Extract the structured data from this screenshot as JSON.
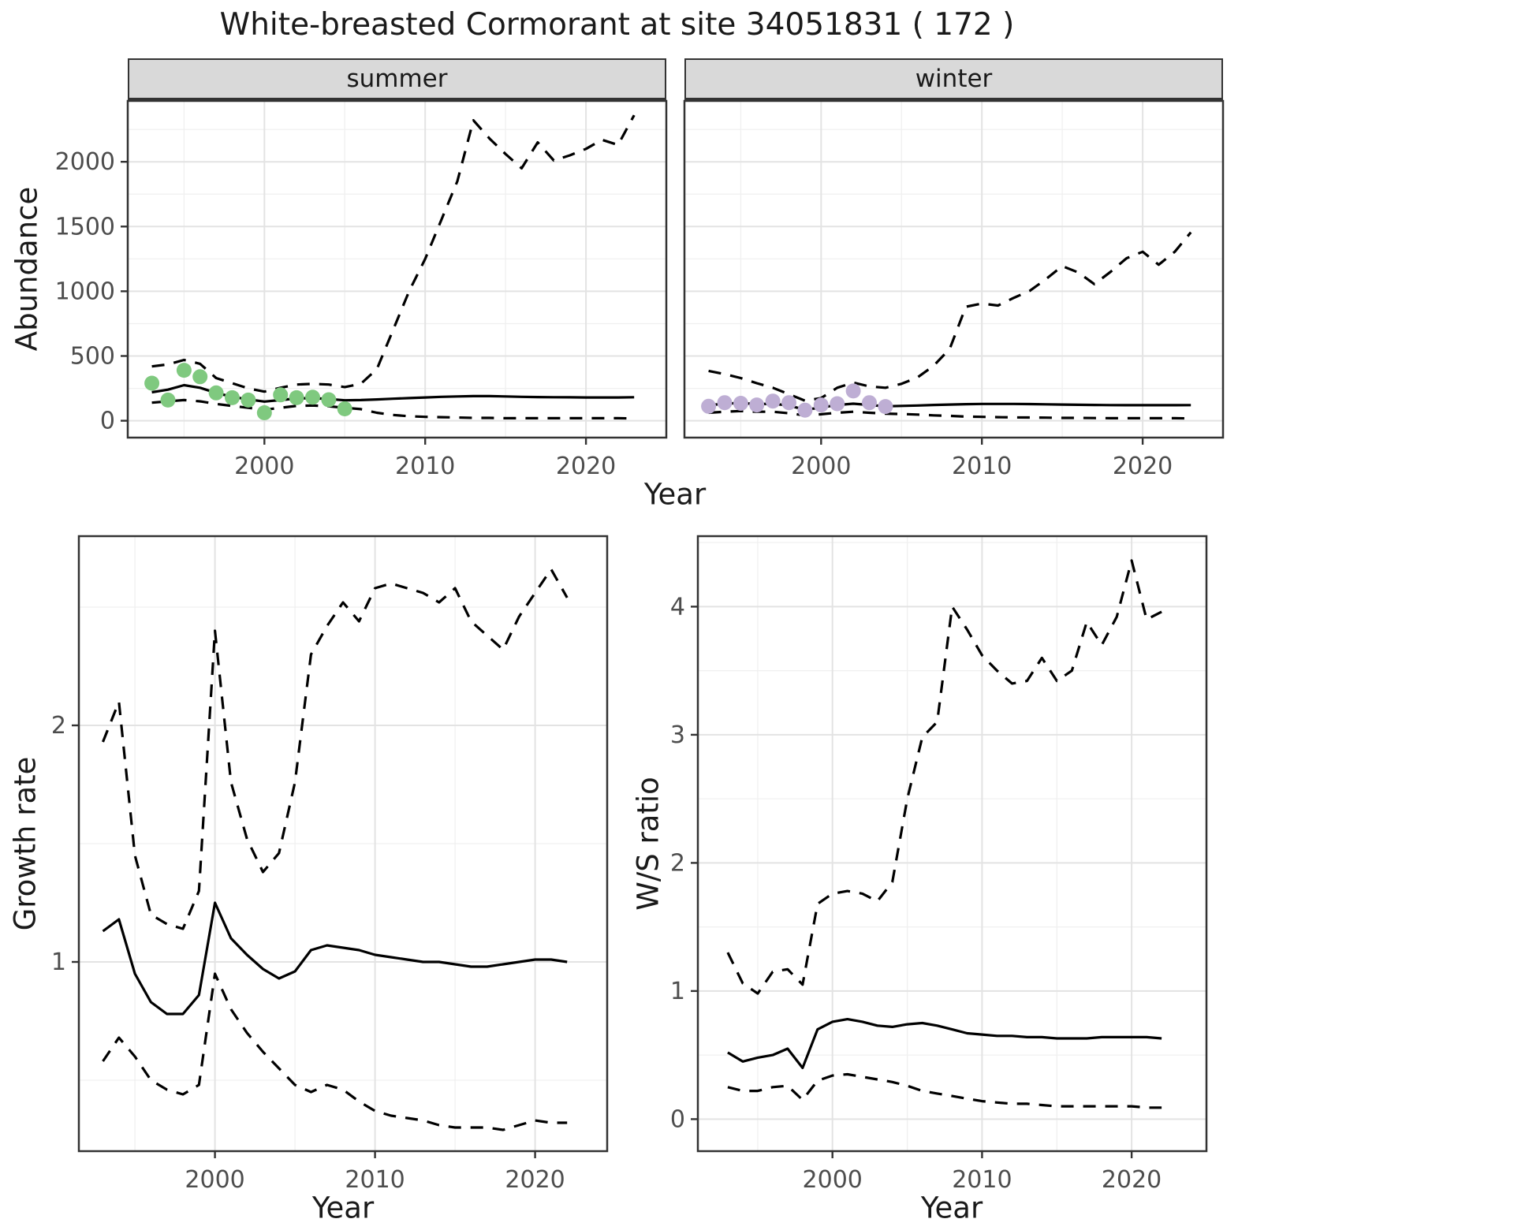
{
  "title": "White-breasted Cormorant at site 34051831 ( 172 )",
  "facets": {
    "summer": "summer",
    "winter": "winter"
  },
  "axis_labels": {
    "abundance": "Abundance",
    "year_top": "Year",
    "growth_rate": "Growth rate",
    "year_bottom_left": "Year",
    "ws_ratio": "W/S ratio",
    "year_bottom_right": "Year"
  },
  "colors": {
    "summer_points": "#7FC97F",
    "winter_points": "#BEAED4",
    "line": "#000000",
    "grid_major": "#E3E3E3",
    "grid_minor": "#F0F0F0",
    "panel_border": "#333333",
    "strip_bg": "#D9D9D9",
    "tick_text": "#4D4D4D"
  },
  "chart_data": [
    {
      "id": "abundance-summer",
      "type": "line",
      "facet_label": "summer",
      "xlabel": "Year",
      "ylabel": "Abundance",
      "xlim": [
        1991.5,
        2025
      ],
      "ylim": [
        -130,
        2470
      ],
      "xticks": [
        2000,
        2010,
        2020
      ],
      "yticks": [
        0,
        500,
        1000,
        1500,
        2000
      ],
      "grid": true,
      "x": [
        1993,
        1994,
        1995,
        1996,
        1997,
        1998,
        1999,
        2000,
        2001,
        2002,
        2003,
        2004,
        2005,
        2006,
        2007,
        2008,
        2009,
        2010,
        2011,
        2012,
        2013,
        2014,
        2015,
        2016,
        2017,
        2018,
        2019,
        2020,
        2021,
        2022,
        2023
      ],
      "series": [
        {
          "name": "median",
          "style": "solid",
          "values": [
            220,
            240,
            275,
            255,
            215,
            185,
            165,
            148,
            160,
            172,
            175,
            168,
            158,
            160,
            165,
            170,
            175,
            180,
            185,
            188,
            190,
            190,
            188,
            185,
            183,
            182,
            181,
            180,
            180,
            180,
            182
          ]
        },
        {
          "name": "upper_ci",
          "style": "dashed",
          "values": [
            420,
            435,
            470,
            440,
            330,
            290,
            250,
            225,
            255,
            280,
            285,
            280,
            260,
            285,
            400,
            700,
            1000,
            1250,
            1550,
            1850,
            2320,
            2180,
            2060,
            1950,
            2150,
            2010,
            2050,
            2100,
            2170,
            2130,
            2360
          ]
        },
        {
          "name": "lower_ci",
          "style": "dashed",
          "values": [
            140,
            150,
            160,
            150,
            130,
            115,
            100,
            85,
            100,
            115,
            118,
            112,
            100,
            90,
            62,
            45,
            35,
            30,
            28,
            25,
            22,
            22,
            20,
            20,
            20,
            20,
            20,
            20,
            20,
            20,
            18
          ]
        }
      ],
      "points": {
        "name": "observed",
        "color_key": "summer_points",
        "x": [
          1993,
          1994,
          1995,
          1996,
          1997,
          1998,
          1999,
          2000,
          2001,
          2002,
          2003,
          2004,
          2005
        ],
        "y": [
          290,
          160,
          390,
          340,
          215,
          178,
          160,
          62,
          200,
          178,
          182,
          162,
          92
        ]
      }
    },
    {
      "id": "abundance-winter",
      "type": "line",
      "facet_label": "winter",
      "xlabel": "Year",
      "ylabel": "Abundance",
      "xlim": [
        1991.5,
        2025
      ],
      "ylim": [
        -130,
        2470
      ],
      "xticks": [
        2000,
        2010,
        2020
      ],
      "yticks": [
        0,
        500,
        1000,
        1500,
        2000
      ],
      "grid": true,
      "x": [
        1993,
        1994,
        1995,
        1996,
        1997,
        1998,
        1999,
        2000,
        2001,
        2002,
        2003,
        2004,
        2005,
        2006,
        2007,
        2008,
        2009,
        2010,
        2011,
        2012,
        2013,
        2014,
        2015,
        2016,
        2017,
        2018,
        2019,
        2020,
        2021,
        2022,
        2023
      ],
      "series": [
        {
          "name": "median",
          "style": "solid",
          "values": [
            120,
            132,
            138,
            128,
            132,
            118,
            85,
            102,
            122,
            132,
            122,
            112,
            115,
            118,
            122,
            125,
            128,
            130,
            130,
            130,
            129,
            127,
            125,
            123,
            122,
            121,
            120,
            120,
            120,
            120,
            121
          ]
        },
        {
          "name": "upper_ci",
          "style": "dashed",
          "values": [
            385,
            360,
            330,
            290,
            255,
            205,
            155,
            175,
            255,
            295,
            265,
            255,
            285,
            335,
            425,
            555,
            880,
            905,
            890,
            950,
            1005,
            1095,
            1195,
            1145,
            1055,
            1150,
            1255,
            1305,
            1205,
            1305,
            1455
          ]
        },
        {
          "name": "lower_ci",
          "style": "dashed",
          "values": [
            62,
            70,
            75,
            70,
            70,
            58,
            42,
            50,
            62,
            70,
            62,
            55,
            52,
            48,
            42,
            38,
            32,
            30,
            28,
            26,
            25,
            24,
            22,
            22,
            21,
            20,
            20,
            20,
            20,
            20,
            18
          ]
        }
      ],
      "points": {
        "name": "observed",
        "color_key": "winter_points",
        "x": [
          1993,
          1994,
          1995,
          1996,
          1997,
          1998,
          1999,
          2000,
          2001,
          2002,
          2003,
          2004
        ],
        "y": [
          112,
          140,
          135,
          122,
          152,
          140,
          82,
          122,
          132,
          230,
          140,
          110
        ]
      }
    },
    {
      "id": "growth-rate",
      "type": "line",
      "title": "",
      "xlabel": "Year",
      "ylabel": "Growth rate",
      "xlim": [
        1991.5,
        2024.5
      ],
      "ylim": [
        0.2,
        2.8
      ],
      "xticks": [
        2000,
        2010,
        2020
      ],
      "yticks": [
        1,
        2
      ],
      "grid": true,
      "x": [
        1993,
        1994,
        1995,
        1996,
        1997,
        1998,
        1999,
        2000,
        2001,
        2002,
        2003,
        2004,
        2005,
        2006,
        2007,
        2008,
        2009,
        2010,
        2011,
        2012,
        2013,
        2014,
        2015,
        2016,
        2017,
        2018,
        2019,
        2020,
        2021,
        2022
      ],
      "series": [
        {
          "name": "median",
          "style": "solid",
          "values": [
            1.13,
            1.18,
            0.95,
            0.83,
            0.78,
            0.78,
            0.86,
            1.25,
            1.1,
            1.03,
            0.97,
            0.93,
            0.96,
            1.05,
            1.07,
            1.06,
            1.05,
            1.03,
            1.02,
            1.01,
            1.0,
            1.0,
            0.99,
            0.98,
            0.98,
            0.99,
            1.0,
            1.01,
            1.01,
            1.0
          ]
        },
        {
          "name": "upper_ci",
          "style": "dashed",
          "values": [
            1.93,
            2.1,
            1.45,
            1.2,
            1.16,
            1.14,
            1.3,
            2.4,
            1.76,
            1.52,
            1.38,
            1.46,
            1.76,
            2.3,
            2.42,
            2.52,
            2.44,
            2.58,
            2.6,
            2.58,
            2.56,
            2.52,
            2.58,
            2.44,
            2.38,
            2.32,
            2.46,
            2.56,
            2.66,
            2.54
          ]
        },
        {
          "name": "lower_ci",
          "style": "dashed",
          "values": [
            0.58,
            0.68,
            0.6,
            0.5,
            0.46,
            0.44,
            0.48,
            0.95,
            0.8,
            0.7,
            0.62,
            0.55,
            0.48,
            0.45,
            0.48,
            0.46,
            0.41,
            0.37,
            0.35,
            0.34,
            0.33,
            0.31,
            0.3,
            0.3,
            0.3,
            0.29,
            0.31,
            0.33,
            0.32,
            0.32
          ]
        }
      ]
    },
    {
      "id": "ws-ratio",
      "type": "line",
      "title": "",
      "xlabel": "Year",
      "ylabel": "W/S ratio",
      "xlim": [
        1991,
        2025
      ],
      "ylim": [
        -0.25,
        4.55
      ],
      "xticks": [
        2000,
        2010,
        2020
      ],
      "yticks": [
        0,
        1,
        2,
        3,
        4
      ],
      "grid": true,
      "x": [
        1993,
        1994,
        1995,
        1996,
        1997,
        1998,
        1999,
        2000,
        2001,
        2002,
        2003,
        2004,
        2005,
        2006,
        2007,
        2008,
        2009,
        2010,
        2011,
        2012,
        2013,
        2014,
        2015,
        2016,
        2017,
        2018,
        2019,
        2020,
        2021,
        2022
      ],
      "series": [
        {
          "name": "median",
          "style": "solid",
          "values": [
            0.52,
            0.45,
            0.48,
            0.5,
            0.55,
            0.4,
            0.7,
            0.76,
            0.78,
            0.76,
            0.73,
            0.72,
            0.74,
            0.75,
            0.73,
            0.7,
            0.67,
            0.66,
            0.65,
            0.65,
            0.64,
            0.64,
            0.63,
            0.63,
            0.63,
            0.64,
            0.64,
            0.64,
            0.64,
            0.63
          ]
        },
        {
          "name": "upper_ci",
          "style": "dashed",
          "values": [
            1.3,
            1.06,
            0.98,
            1.15,
            1.17,
            1.05,
            1.68,
            1.76,
            1.78,
            1.76,
            1.7,
            1.85,
            2.5,
            2.98,
            3.1,
            4.0,
            3.82,
            3.62,
            3.5,
            3.4,
            3.42,
            3.6,
            3.42,
            3.5,
            3.88,
            3.7,
            3.92,
            4.36,
            3.9,
            3.96
          ]
        },
        {
          "name": "lower_ci",
          "style": "dashed",
          "values": [
            0.25,
            0.22,
            0.22,
            0.25,
            0.26,
            0.15,
            0.3,
            0.34,
            0.35,
            0.33,
            0.31,
            0.29,
            0.26,
            0.22,
            0.2,
            0.18,
            0.16,
            0.14,
            0.13,
            0.12,
            0.12,
            0.11,
            0.1,
            0.1,
            0.1,
            0.1,
            0.1,
            0.1,
            0.09,
            0.09
          ]
        }
      ]
    }
  ]
}
